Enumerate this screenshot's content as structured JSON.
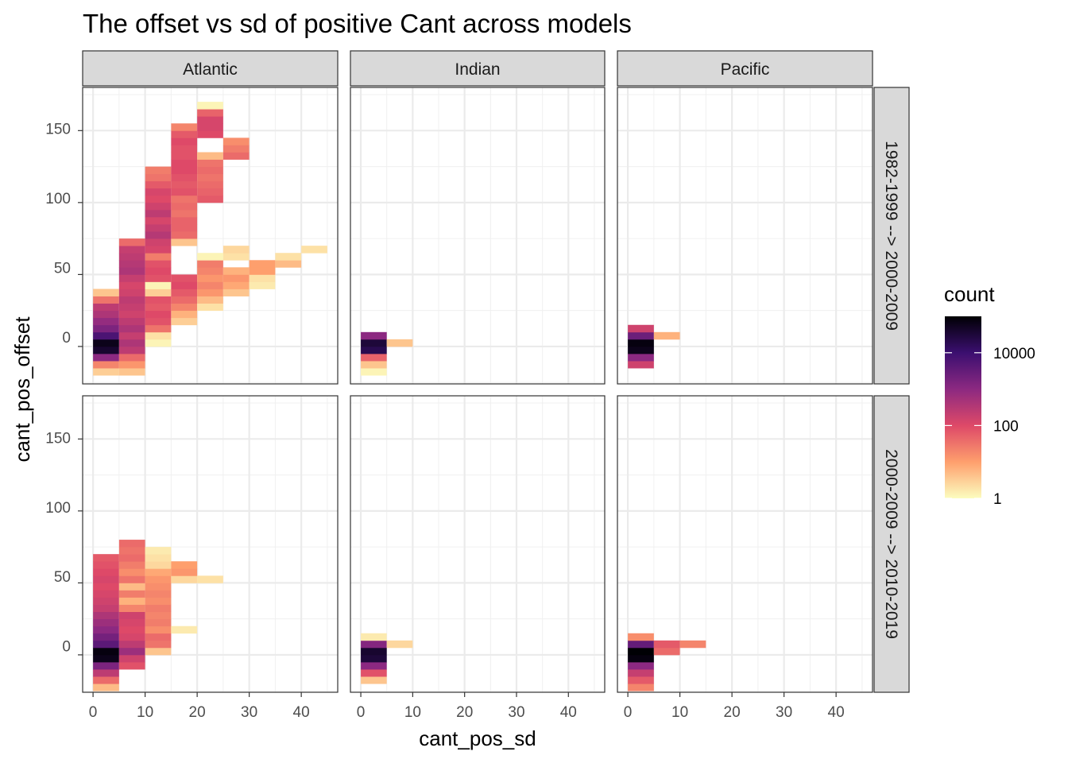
{
  "chart_data": {
    "type": "heatmap",
    "title": "The offset vs sd of positive Cant across models",
    "xlabel": "cant_pos_sd",
    "ylabel": "cant_pos_offset",
    "xlim": [
      -2,
      47
    ],
    "ylim": [
      -26,
      180
    ],
    "xticks": [
      0,
      10,
      20,
      30,
      40
    ],
    "yticks": [
      0,
      50,
      100,
      150
    ],
    "bin_width_x": 5,
    "bin_height_y": 5,
    "columns": [
      "Atlantic",
      "Indian",
      "Pacific"
    ],
    "rows": [
      "1982-1999 --> 2000-2009",
      "2000-2009 --> 2010-2019"
    ],
    "legend": {
      "title": "count",
      "scale": "log10",
      "min": 1,
      "max": 100000,
      "breaks": [
        1,
        100,
        10000
      ],
      "labels": [
        "1",
        "100",
        "10000"
      ],
      "palette": [
        "#fcfdbf",
        "#fe9f6d",
        "#de4968",
        "#8c2981",
        "#3b0f70",
        "#000004"
      ]
    },
    "panels": [
      {
        "row": 0,
        "col": 0,
        "cells": [
          [
            2.5,
            -17.5,
            0.5
          ],
          [
            2.5,
            -12.5,
            1.3
          ],
          [
            2.5,
            -7.5,
            3.0
          ],
          [
            2.5,
            -2.5,
            4.6
          ],
          [
            2.5,
            2.5,
            4.8
          ],
          [
            2.5,
            7.5,
            3.8
          ],
          [
            2.5,
            12.5,
            3.2
          ],
          [
            2.5,
            17.5,
            2.9
          ],
          [
            2.5,
            22.5,
            2.6
          ],
          [
            2.5,
            27.5,
            2.4
          ],
          [
            2.5,
            32.5,
            1.5
          ],
          [
            2.5,
            37.5,
            0.6
          ],
          [
            7.5,
            -17.5,
            0.6
          ],
          [
            7.5,
            -12.5,
            1.1
          ],
          [
            7.5,
            -7.5,
            1.6
          ],
          [
            7.5,
            -2.5,
            2.4
          ],
          [
            7.5,
            2.5,
            2.6
          ],
          [
            7.5,
            7.5,
            2.3
          ],
          [
            7.5,
            12.5,
            2.6
          ],
          [
            7.5,
            17.5,
            2.4
          ],
          [
            7.5,
            22.5,
            2.2
          ],
          [
            7.5,
            27.5,
            2.3
          ],
          [
            7.5,
            32.5,
            2.4
          ],
          [
            7.5,
            37.5,
            2.2
          ],
          [
            7.5,
            42.5,
            2.1
          ],
          [
            7.5,
            47.5,
            2.3
          ],
          [
            7.5,
            52.5,
            2.6
          ],
          [
            7.5,
            57.5,
            2.5
          ],
          [
            7.5,
            62.5,
            2.4
          ],
          [
            7.5,
            67.5,
            2.3
          ],
          [
            7.5,
            72.5,
            1.6
          ],
          [
            12.5,
            2.5,
            0.1
          ],
          [
            12.5,
            7.5,
            0.3
          ],
          [
            12.5,
            12.5,
            1.5
          ],
          [
            12.5,
            17.5,
            1.9
          ],
          [
            12.5,
            22.5,
            2.0
          ],
          [
            12.5,
            27.5,
            1.8
          ],
          [
            12.5,
            32.5,
            1.9
          ],
          [
            12.5,
            37.5,
            0.5
          ],
          [
            12.5,
            42.5,
            0.1
          ],
          [
            12.5,
            47.5,
            1.9
          ],
          [
            12.5,
            52.5,
            2.0
          ],
          [
            12.5,
            57.5,
            1.9
          ],
          [
            12.5,
            62.5,
            1.4
          ],
          [
            12.5,
            67.5,
            2.1
          ],
          [
            12.5,
            72.5,
            2.2
          ],
          [
            12.5,
            77.5,
            2.5
          ],
          [
            12.5,
            82.5,
            2.3
          ],
          [
            12.5,
            87.5,
            2.1
          ],
          [
            12.5,
            92.5,
            2.4
          ],
          [
            12.5,
            97.5,
            2.2
          ],
          [
            12.5,
            102.5,
            2.0
          ],
          [
            12.5,
            107.5,
            2.1
          ],
          [
            12.5,
            112.5,
            1.8
          ],
          [
            12.5,
            117.5,
            1.5
          ],
          [
            12.5,
            122.5,
            1.4
          ],
          [
            17.5,
            17.5,
            0.5
          ],
          [
            17.5,
            22.5,
            0.8
          ],
          [
            17.5,
            27.5,
            1.3
          ],
          [
            17.5,
            32.5,
            1.6
          ],
          [
            17.5,
            37.5,
            1.8
          ],
          [
            17.5,
            42.5,
            2.0
          ],
          [
            17.5,
            47.5,
            1.9
          ],
          [
            17.5,
            72.5,
            0.6
          ],
          [
            17.5,
            77.5,
            1.6
          ],
          [
            17.5,
            82.5,
            1.7
          ],
          [
            17.5,
            87.5,
            1.7
          ],
          [
            17.5,
            92.5,
            1.5
          ],
          [
            17.5,
            97.5,
            1.6
          ],
          [
            17.5,
            102.5,
            1.5
          ],
          [
            17.5,
            107.5,
            1.9
          ],
          [
            17.5,
            112.5,
            1.8
          ],
          [
            17.5,
            117.5,
            1.9
          ],
          [
            17.5,
            122.5,
            2.0
          ],
          [
            17.5,
            127.5,
            2.0
          ],
          [
            17.5,
            132.5,
            1.9
          ],
          [
            17.5,
            137.5,
            1.9
          ],
          [
            17.5,
            142.5,
            2.0
          ],
          [
            17.5,
            147.5,
            1.8
          ],
          [
            17.5,
            152.5,
            1.3
          ],
          [
            22.5,
            27.5,
            0.3
          ],
          [
            22.5,
            32.5,
            0.7
          ],
          [
            22.5,
            37.5,
            1.1
          ],
          [
            22.5,
            42.5,
            1.3
          ],
          [
            22.5,
            47.5,
            1.1
          ],
          [
            22.5,
            52.5,
            1.3
          ],
          [
            22.5,
            57.5,
            1.4
          ],
          [
            22.5,
            62.5,
            0.1
          ],
          [
            22.5,
            102.5,
            1.8
          ],
          [
            22.5,
            107.5,
            1.7
          ],
          [
            22.5,
            112.5,
            1.6
          ],
          [
            22.5,
            117.5,
            1.5
          ],
          [
            22.5,
            122.5,
            1.6
          ],
          [
            22.5,
            127.5,
            1.5
          ],
          [
            22.5,
            132.5,
            0.7
          ],
          [
            22.5,
            147.5,
            2.0
          ],
          [
            22.5,
            152.5,
            2.1
          ],
          [
            22.5,
            157.5,
            2.1
          ],
          [
            22.5,
            162.5,
            1.7
          ],
          [
            22.5,
            167.5,
            0.1
          ],
          [
            27.5,
            37.5,
            0.6
          ],
          [
            27.5,
            42.5,
            0.9
          ],
          [
            27.5,
            47.5,
            1.1
          ],
          [
            27.5,
            52.5,
            0.8
          ],
          [
            27.5,
            62.5,
            0.3
          ],
          [
            27.5,
            67.5,
            0.4
          ],
          [
            27.5,
            132.5,
            1.6
          ],
          [
            27.5,
            137.5,
            1.4
          ],
          [
            27.5,
            142.5,
            1.2
          ],
          [
            32.5,
            42.5,
            0.2
          ],
          [
            32.5,
            47.5,
            0.3
          ],
          [
            32.5,
            52.5,
            1.0
          ],
          [
            32.5,
            57.5,
            1.0
          ],
          [
            37.5,
            57.5,
            0.7
          ],
          [
            37.5,
            62.5,
            0.3
          ],
          [
            42.5,
            67.5,
            0.3
          ]
        ]
      },
      {
        "row": 0,
        "col": 1,
        "cells": [
          [
            2.5,
            -17.5,
            0.1
          ],
          [
            2.5,
            -12.5,
            0.6
          ],
          [
            2.5,
            -7.5,
            1.7
          ],
          [
            2.5,
            -2.5,
            4.3
          ],
          [
            2.5,
            2.5,
            4.5
          ],
          [
            2.5,
            7.5,
            3.0
          ],
          [
            7.5,
            2.5,
            0.6
          ]
        ]
      },
      {
        "row": 0,
        "col": 2,
        "cells": [
          [
            2.5,
            -12.5,
            2.2
          ],
          [
            2.5,
            -7.5,
            3.0
          ],
          [
            2.5,
            -2.5,
            4.8
          ],
          [
            2.5,
            2.5,
            4.9
          ],
          [
            2.5,
            7.5,
            3.4
          ],
          [
            2.5,
            12.5,
            2.2
          ],
          [
            7.5,
            7.5,
            0.8
          ]
        ]
      },
      {
        "row": 1,
        "col": 0,
        "cells": [
          [
            2.5,
            -22.5,
            0.7
          ],
          [
            2.5,
            -17.5,
            1.6
          ],
          [
            2.5,
            -12.5,
            2.4
          ],
          [
            2.5,
            -7.5,
            3.2
          ],
          [
            2.5,
            -2.5,
            4.8
          ],
          [
            2.5,
            2.5,
            4.9
          ],
          [
            2.5,
            7.5,
            3.6
          ],
          [
            2.5,
            12.5,
            3.3
          ],
          [
            2.5,
            17.5,
            3.0
          ],
          [
            2.5,
            22.5,
            2.8
          ],
          [
            2.5,
            27.5,
            2.6
          ],
          [
            2.5,
            32.5,
            2.3
          ],
          [
            2.5,
            37.5,
            2.2
          ],
          [
            2.5,
            42.5,
            2.1
          ],
          [
            2.5,
            47.5,
            2.0
          ],
          [
            2.5,
            52.5,
            2.1
          ],
          [
            2.5,
            57.5,
            2.0
          ],
          [
            2.5,
            62.5,
            1.9
          ],
          [
            2.5,
            67.5,
            1.8
          ],
          [
            7.5,
            -7.5,
            1.9
          ],
          [
            7.5,
            -2.5,
            2.2
          ],
          [
            7.5,
            2.5,
            2.8
          ],
          [
            7.5,
            7.5,
            2.4
          ],
          [
            7.5,
            12.5,
            2.1
          ],
          [
            7.5,
            17.5,
            2.0
          ],
          [
            7.5,
            22.5,
            2.1
          ],
          [
            7.5,
            27.5,
            2.2
          ],
          [
            7.5,
            32.5,
            1.3
          ],
          [
            7.5,
            37.5,
            0.8
          ],
          [
            7.5,
            42.5,
            1.4
          ],
          [
            7.5,
            47.5,
            0.7
          ],
          [
            7.5,
            52.5,
            1.5
          ],
          [
            7.5,
            57.5,
            1.2
          ],
          [
            7.5,
            62.5,
            1.4
          ],
          [
            7.5,
            67.5,
            1.6
          ],
          [
            7.5,
            72.5,
            1.5
          ],
          [
            7.5,
            77.5,
            1.6
          ],
          [
            12.5,
            2.5,
            0.6
          ],
          [
            12.5,
            7.5,
            1.5
          ],
          [
            12.5,
            12.5,
            1.6
          ],
          [
            12.5,
            17.5,
            1.2
          ],
          [
            12.5,
            22.5,
            1.4
          ],
          [
            12.5,
            27.5,
            1.3
          ],
          [
            12.5,
            32.5,
            1.4
          ],
          [
            12.5,
            37.5,
            1.2
          ],
          [
            12.5,
            42.5,
            1.3
          ],
          [
            12.5,
            47.5,
            1.2
          ],
          [
            12.5,
            52.5,
            1.1
          ],
          [
            12.5,
            57.5,
            0.9
          ],
          [
            12.5,
            62.5,
            0.4
          ],
          [
            12.5,
            67.5,
            0.3
          ],
          [
            12.5,
            72.5,
            0.2
          ],
          [
            17.5,
            17.5,
            0.2
          ],
          [
            17.5,
            52.5,
            0.4
          ],
          [
            17.5,
            57.5,
            1.1
          ],
          [
            17.5,
            62.5,
            1.0
          ],
          [
            22.5,
            52.5,
            0.3
          ]
        ]
      },
      {
        "row": 1,
        "col": 1,
        "cells": [
          [
            2.5,
            -17.5,
            0.6
          ],
          [
            2.5,
            -12.5,
            1.9
          ],
          [
            2.5,
            -7.5,
            3.0
          ],
          [
            2.5,
            -2.5,
            4.5
          ],
          [
            2.5,
            2.5,
            4.6
          ],
          [
            2.5,
            7.5,
            3.1
          ],
          [
            2.5,
            12.5,
            0.2
          ],
          [
            7.5,
            7.5,
            0.4
          ]
        ]
      },
      {
        "row": 1,
        "col": 2,
        "cells": [
          [
            2.5,
            -22.5,
            1.3
          ],
          [
            2.5,
            -17.5,
            1.8
          ],
          [
            2.5,
            -12.5,
            2.3
          ],
          [
            2.5,
            -7.5,
            3.0
          ],
          [
            2.5,
            -2.5,
            4.9
          ],
          [
            2.5,
            2.5,
            5.0
          ],
          [
            2.5,
            7.5,
            3.5
          ],
          [
            2.5,
            12.5,
            1.2
          ],
          [
            7.5,
            2.5,
            1.6
          ],
          [
            7.5,
            7.5,
            1.8
          ],
          [
            12.5,
            7.5,
            1.3
          ]
        ]
      }
    ]
  }
}
